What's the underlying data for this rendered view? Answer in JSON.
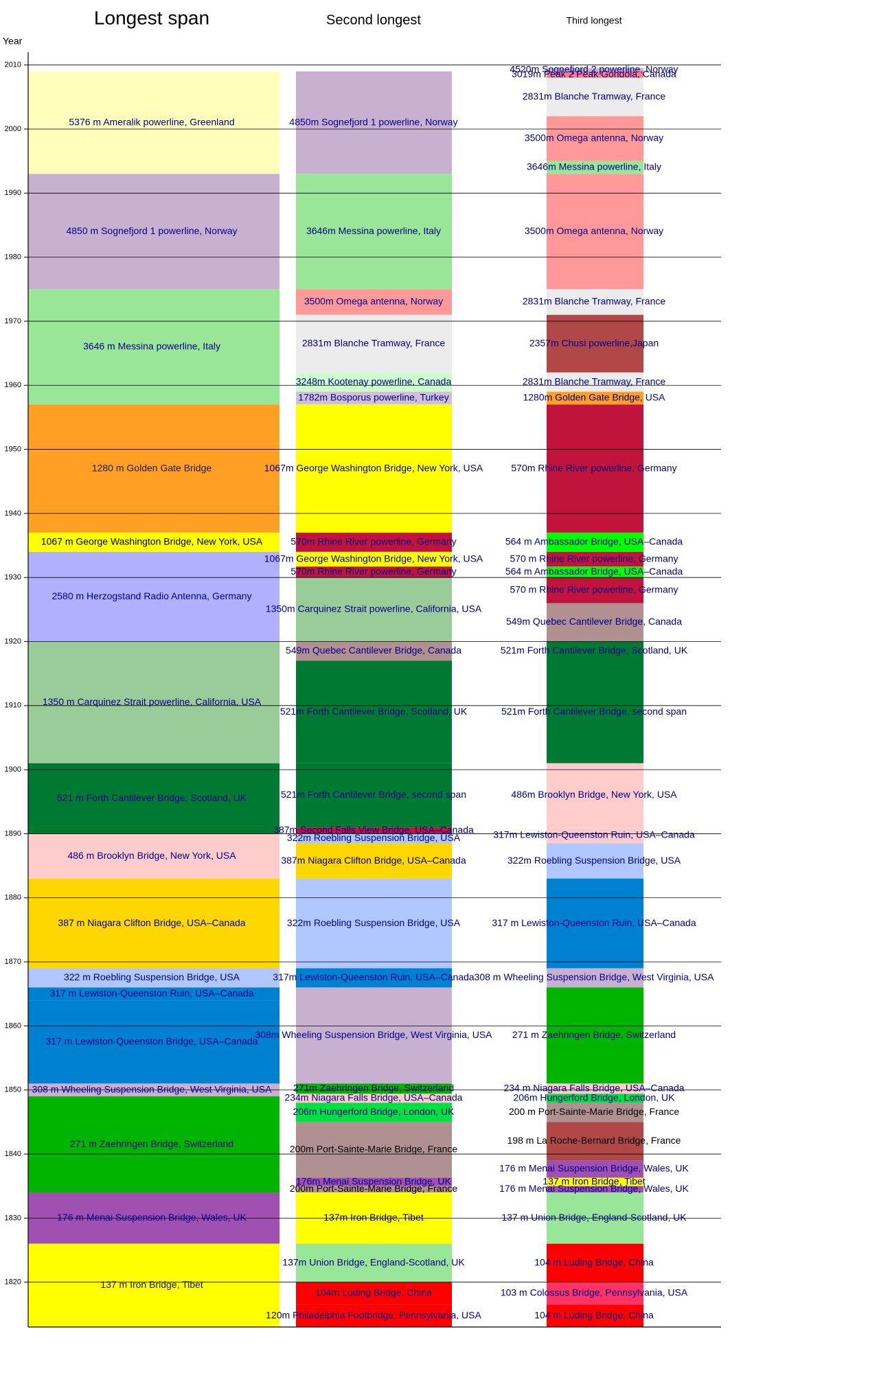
{
  "chart_data": {
    "type": "timeline",
    "y_label": "Year",
    "ylim": [
      1813,
      2012
    ],
    "yticks": [
      1820,
      1830,
      1840,
      1850,
      1860,
      1870,
      1880,
      1890,
      1900,
      1910,
      1920,
      1930,
      1940,
      1950,
      1960,
      1970,
      1980,
      1990,
      2000,
      2010
    ],
    "grid": true,
    "text_color": "#00008b",
    "columns": [
      {
        "name": "Longest span",
        "items": [
          {
            "label": "5376 m Ameralik powerline, Greenland",
            "start": 1993,
            "end": 2009,
            "color": "#ffffbb"
          },
          {
            "label": "4850 m Sognefjord 1 powerline, Norway",
            "start": 1975,
            "end": 1993,
            "color": "#c8b0d0"
          },
          {
            "label": "3646 m Messina powerline, Italy",
            "start": 1957,
            "end": 1975,
            "color": "#99e699"
          },
          {
            "label": "1280 m Golden Gate Bridge",
            "start": 1937,
            "end": 1957,
            "color": "#ffa024",
            "text_color": "#1a1a50"
          },
          {
            "label": "1067 m George Washington Bridge, New York, USA",
            "start": 1934,
            "end": 1937,
            "color": "#ffff00",
            "text_color": "#000000"
          },
          {
            "label": "2580 m Herzogstand Radio Antenna, Germany",
            "start": 1920,
            "end": 1934,
            "color": "#b0b0ff"
          },
          {
            "label": "1350 m Carquinez Strait powerline, California, USA",
            "start": 1901,
            "end": 1920,
            "color": "#99cc99"
          },
          {
            "label": "521 m Forth Cantilever Bridge, Scotland, UK",
            "start": 1890,
            "end": 1901,
            "color": "#007a33"
          },
          {
            "label": "486 m Brooklyn Bridge, New York, USA",
            "start": 1883,
            "end": 1890,
            "color": "#ffcccc"
          },
          {
            "label": "387 m Niagara Clifton Bridge, USA–Canada",
            "start": 1869,
            "end": 1883,
            "color": "#ffd700"
          },
          {
            "label": "322 m Roebling Suspension Bridge, USA",
            "start": 1866,
            "end": 1869,
            "color": "#b0c8ff"
          },
          {
            "label": "317 m Lewiston-Queenston Ruin, USA–Canada",
            "start": 1864,
            "end": 1866,
            "color": "#0080d0"
          },
          {
            "label": "317 m Lewiston-Queenston Bridge, USA–Canada",
            "start": 1851,
            "end": 1864,
            "color": "#0080d0"
          },
          {
            "label": "308 m Wheeling Suspension Bridge, West Virginia, USA",
            "start": 1849,
            "end": 1851,
            "color": "#c8b0d0"
          },
          {
            "label": "271 m Zaehringen Bridge, Switzerland",
            "start": 1834,
            "end": 1849,
            "color": "#00b400"
          },
          {
            "label": "176 m Menai Suspension Bridge, Wales, UK",
            "start": 1826,
            "end": 1834,
            "color": "#a050b0"
          },
          {
            "label": "137 m Iron Bridge, Tibet",
            "start": 1813,
            "end": 1826,
            "color": "#ffff00",
            "text_color": "#1a1a50"
          }
        ]
      },
      {
        "name": "Second longest",
        "items": [
          {
            "label": "4850m Sognefjord 1 powerline, Norway",
            "start": 1993,
            "end": 2009,
            "color": "#c8b0d0"
          },
          {
            "label": "3646m Messina powerline, Italy",
            "start": 1975,
            "end": 1993,
            "color": "#99e699"
          },
          {
            "label": "3500m Omega antenna, Norway",
            "start": 1971,
            "end": 1975,
            "color": "#ff9999"
          },
          {
            "label": "2831m Blanche Tramway, France",
            "start": 1962,
            "end": 1971,
            "color": "#ececec"
          },
          {
            "label": "3248m Kootenay powerline, Canada",
            "start": 1959,
            "end": 1962,
            "color": "#ccffcc"
          },
          {
            "label": "1782m Bosporus powerline, Turkey",
            "start": 1957,
            "end": 1959,
            "color": "#d0c0d8"
          },
          {
            "label": "1067m George Washington Bridge, New York, USA",
            "start": 1937,
            "end": 1957,
            "color": "#ffff00"
          },
          {
            "label": "570m Rhine River powerline, Germany",
            "start": 1934,
            "end": 1937,
            "color": "#c0143c"
          },
          {
            "label": "1067m George Washington Bridge, New York, USA",
            "start": 1931.7,
            "end": 1934,
            "color": "#ffff00"
          },
          {
            "label": "570m Rhine River powerline, Germany",
            "start": 1930,
            "end": 1931.7,
            "color": "#c0143c"
          },
          {
            "label": "1350m Carquinez Strait powerline, California, USA",
            "start": 1920,
            "end": 1930,
            "color": "#99cc99"
          },
          {
            "label": "549m Quebec Cantilever Bridge, Canada",
            "start": 1917,
            "end": 1920,
            "color": "#b09090"
          },
          {
            "label": "521m Forth Cantilever Bridge, Scotland, UK",
            "start": 1901,
            "end": 1917,
            "color": "#007a33"
          },
          {
            "label": "521m Forth Cantilever Bridge, second span",
            "start": 1891,
            "end": 1901,
            "color": "#007a33"
          },
          {
            "label": "387m Second Falls View Bridge, USA–Canada",
            "start": 1890,
            "end": 1891,
            "color": "#c0143c"
          },
          {
            "label": "322m Roebling Suspension Bridge, USA",
            "start": 1888.5,
            "end": 1890,
            "color": "#b0c8ff"
          },
          {
            "label": "387m Niagara Clifton Bridge, USA–Canada",
            "start": 1883,
            "end": 1888.5,
            "color": "#ffd700"
          },
          {
            "label": "322m Roebling Suspension Bridge, USA",
            "start": 1869,
            "end": 1883,
            "color": "#b0c8ff"
          },
          {
            "label": "317m Lewiston-Queenston Ruin, USA–Canada",
            "start": 1866,
            "end": 1869,
            "color": "#0080d0"
          },
          {
            "label": "308m Wheeling Suspension Bridge, West Virginia, USA",
            "start": 1851,
            "end": 1866,
            "color": "#c8b0d0"
          },
          {
            "label": "271m Zaehringen Bridge, Switzerland",
            "start": 1849.4,
            "end": 1851,
            "color": "#00b400"
          },
          {
            "label": "234m Niagara Falls Bridge, USA–Canada",
            "start": 1848,
            "end": 1849.4,
            "color": "#ffcccc"
          },
          {
            "label": "206m Hungerford Bridge, London, UK",
            "start": 1845,
            "end": 1848,
            "color": "#00e040"
          },
          {
            "label": "200m Port-Sainte-Marie Bridge, France",
            "start": 1836.3,
            "end": 1845,
            "color": "#b09090",
            "text_color": "#000000"
          },
          {
            "label": "176m Menai Suspension Bridge, UK",
            "start": 1835,
            "end": 1836.3,
            "color": "#a050b0"
          },
          {
            "label": "200m Port-Sainte-Marie Bridge, France",
            "start": 1834,
            "end": 1835,
            "color": "#b09090",
            "text_color": "#000000"
          },
          {
            "label": "137m Iron Bridge, Tibet",
            "start": 1826,
            "end": 1834,
            "color": "#ffff00"
          },
          {
            "label": "137m Union Bridge, England-Scotland, UK",
            "start": 1820,
            "end": 1826,
            "color": "#99e699"
          },
          {
            "label": "104m Luding Bridge, China",
            "start": 1816.5,
            "end": 1820,
            "color": "#ff0000"
          },
          {
            "label": "120m Philadelphia Footbridge, Pennsylvania, USA",
            "start": 1813,
            "end": 1816.5,
            "color": "#ff0000"
          }
        ]
      },
      {
        "name": "Third longest",
        "items": [
          {
            "label": "4520m Sognefjord 2 powerline, Norway",
            "start": 2009,
            "end": 2009.5,
            "color": "#c8b0d0"
          },
          {
            "label": "3019m Peak 2 Peak Gondola, Canada",
            "start": 2008,
            "end": 2009,
            "color": "#ff8080"
          },
          {
            "label": "2831m Blanche Tramway, France",
            "start": 2002,
            "end": 2008,
            "color": "#ececec"
          },
          {
            "label": "3500m Omega antenna, Norway",
            "start": 1995,
            "end": 2002,
            "color": "#ff9999"
          },
          {
            "label": "3646m Messina powerline, Italy",
            "start": 1993,
            "end": 1995,
            "color": "#99e699"
          },
          {
            "label": "3500m Omega antenna, Norway",
            "start": 1975,
            "end": 1993,
            "color": "#ff9999"
          },
          {
            "label": "2831m Blanche Tramway, France",
            "start": 1971,
            "end": 1975,
            "color": "#ececec"
          },
          {
            "label": "2357m Chusi powerline,Japan",
            "start": 1962,
            "end": 1971,
            "color": "#b04848"
          },
          {
            "label": "2831m Blanche Tramway, France",
            "start": 1959,
            "end": 1962,
            "color": "#ececec"
          },
          {
            "label": "1280m Golden Gate Bridge, USA",
            "start": 1957,
            "end": 1959,
            "color": "#ffa024"
          },
          {
            "label": "570m Rhine River powerline, Germany",
            "start": 1937,
            "end": 1957,
            "color": "#c0143c"
          },
          {
            "label": "564 m Ambassador Bridge, USA–Canada",
            "start": 1934,
            "end": 1937,
            "color": "#00ff00"
          },
          {
            "label": "570 m Rhine River powerline, Germany",
            "start": 1931.7,
            "end": 1934,
            "color": "#c0143c"
          },
          {
            "label": "564 m Ambassador Bridge, USA–Canada",
            "start": 1930,
            "end": 1931.7,
            "color": "#00ff00"
          },
          {
            "label": "570 m Rhine River powerline, Germany",
            "start": 1926,
            "end": 1930,
            "color": "#c0143c"
          },
          {
            "label": "549m Quebec Cantilever Bridge, Canada",
            "start": 1920,
            "end": 1926,
            "color": "#b09090"
          },
          {
            "label": "521m Forth Cantilever Bridge, Scotland, UK",
            "start": 1917,
            "end": 1920,
            "color": "#007a33"
          },
          {
            "label": "521m Forth Cantilever Bridge, second span",
            "start": 1901,
            "end": 1917,
            "color": "#007a33"
          },
          {
            "label": "486m Brooklyn Bridge, New York, USA",
            "start": 1891,
            "end": 1901,
            "color": "#ffcccc"
          },
          {
            "label": "317m Lewiston-Queenston Ruin, USA–Canada",
            "start": 1888.5,
            "end": 1891,
            "color": "#ffcccc"
          },
          {
            "label": "322m Roebling Suspension Bridge, USA",
            "start": 1883,
            "end": 1888.5,
            "color": "#b0c8ff"
          },
          {
            "label": "317 m Lewiston-Queenston Ruin, USA–Canada",
            "start": 1869,
            "end": 1883,
            "color": "#0080d0"
          },
          {
            "label": "308 m Wheeling Suspension Bridge, West Virginia, USA",
            "start": 1866,
            "end": 1869,
            "color": "#c8b0d0"
          },
          {
            "label": "271 m Zaehringen Bridge, Switzerland",
            "start": 1851,
            "end": 1866,
            "color": "#00b400"
          },
          {
            "label": "234 m Niagara Falls Bridge, USA–Canada",
            "start": 1849.4,
            "end": 1851,
            "color": "#ffcccc"
          },
          {
            "label": "206m Hungerford Bridge, London, UK",
            "start": 1848,
            "end": 1849.4,
            "color": "#00e040"
          },
          {
            "label": "200 m Port-Sainte-Marie Bridge, France",
            "start": 1845,
            "end": 1848,
            "color": "#b09090",
            "text_color": "#000000"
          },
          {
            "label": "198 m La Roche-Bernard Bridge, France",
            "start": 1839,
            "end": 1845,
            "color": "#b04848",
            "text_color": "#000000"
          },
          {
            "label": "176 m Menai Suspension Bridge, Wales, UK",
            "start": 1836.3,
            "end": 1839,
            "color": "#a050b0"
          },
          {
            "label": "137 m Iron Bridge, Tibet",
            "start": 1835,
            "end": 1836.3,
            "color": "#ffff00"
          },
          {
            "label": "176 m Menai Suspension Bridge, Wales, UK",
            "start": 1834,
            "end": 1835,
            "color": "#a050b0"
          },
          {
            "label": "137 m Union Bridge, England-Scotland, UK",
            "start": 1826,
            "end": 1834,
            "color": "#99e699"
          },
          {
            "label": "104 m Luding Bridge, China",
            "start": 1820,
            "end": 1826,
            "color": "#ff0000"
          },
          {
            "label": "103 m Colossus Bridge, Pennsylvania, USA",
            "start": 1816.5,
            "end": 1820,
            "color": "#ff3366"
          },
          {
            "label": "104 m Luding Bridge, China",
            "start": 1813,
            "end": 1816.5,
            "color": "#ff0000"
          }
        ]
      }
    ]
  }
}
